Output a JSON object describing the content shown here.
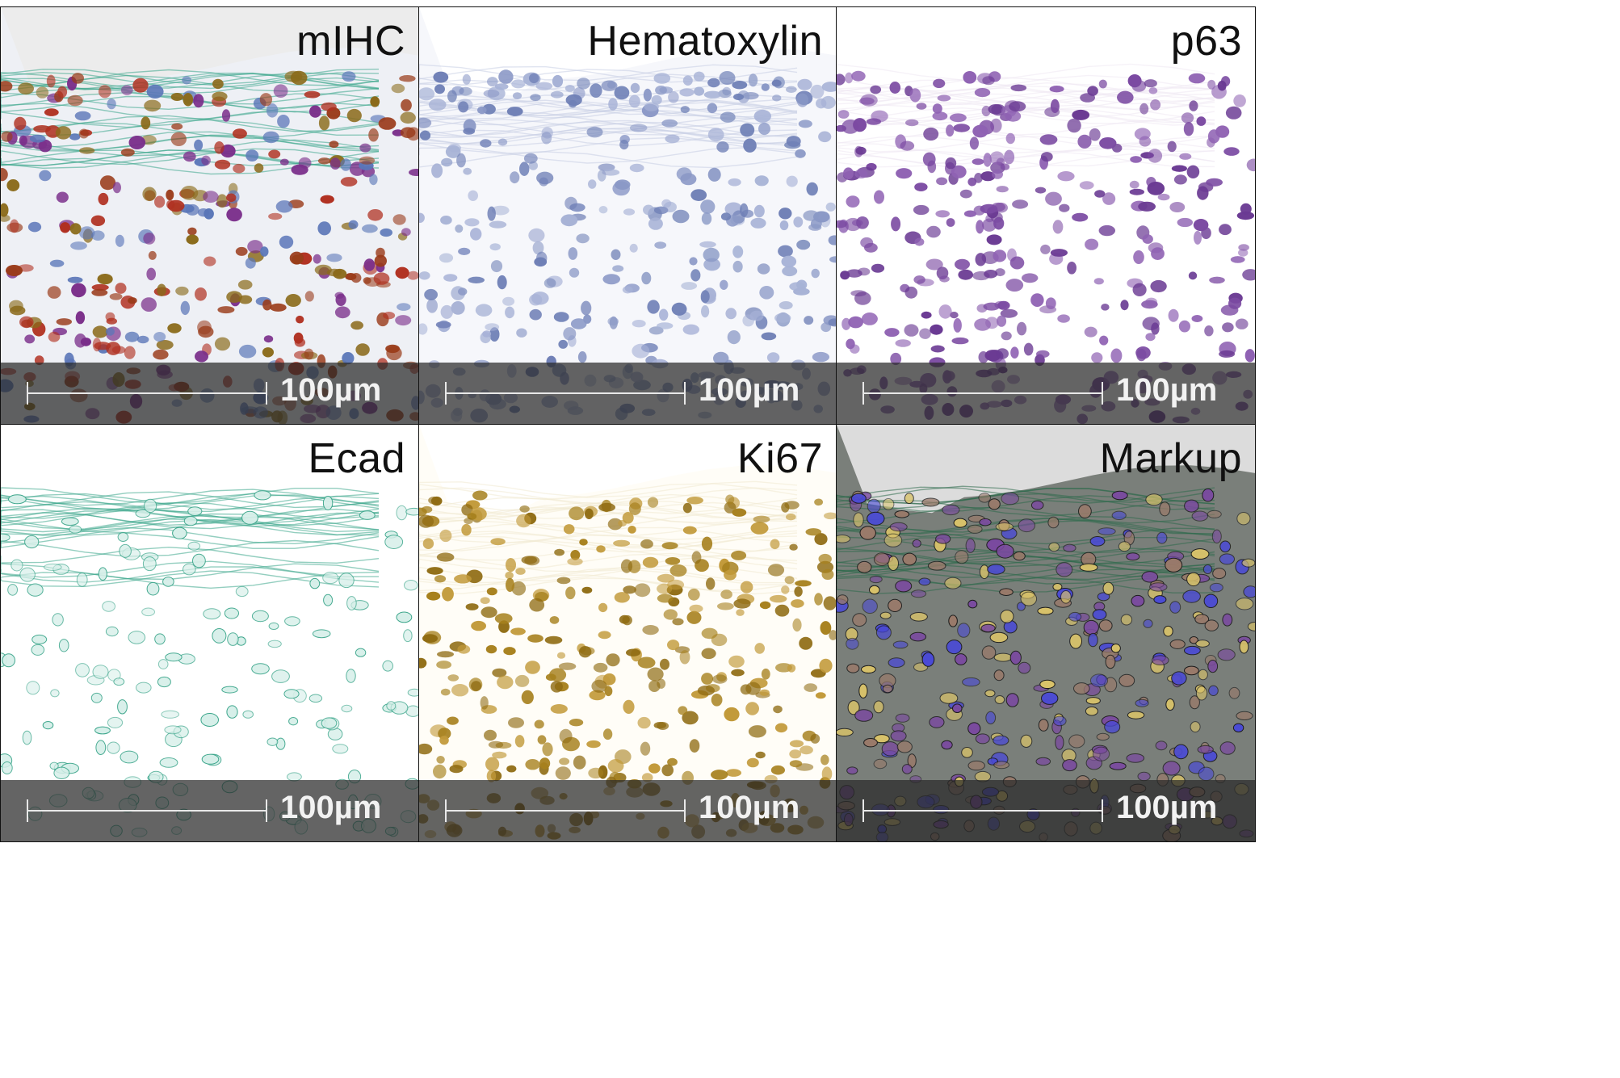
{
  "panels": [
    {
      "key": "mihc",
      "title": "mIHC",
      "scale_label": "100µm",
      "top_color": "#ececec",
      "bg_color": "#eef0f5",
      "nuclei_colors": [
        "#7a2e8a",
        "#9a3b1a",
        "#8a6a1a",
        "#5a76b8",
        "#b03020"
      ],
      "membrane_color": "#3aa58a"
    },
    {
      "key": "hematoxylin",
      "title": "Hematoxylin",
      "scale_label": "100µm",
      "top_color": "#ffffff",
      "bg_color": "#f6f7fb",
      "nuclei_colors": [
        "#8a98c6",
        "#6f80b6",
        "#a7b2d6"
      ],
      "membrane_color": "#c7cde4"
    },
    {
      "key": "p63",
      "title": "p63",
      "scale_label": "100µm",
      "top_color": "#ffffff",
      "bg_color": "#ffffff",
      "nuclei_colors": [
        "#6a3a93",
        "#7b4aa2",
        "#8f62b3"
      ],
      "membrane_color": "#efe8f3"
    },
    {
      "key": "ecad",
      "title": "Ecad",
      "scale_label": "100µm",
      "top_color": "#ffffff",
      "bg_color": "#ffffff",
      "nuclei_colors": [
        "#d6efe9"
      ],
      "membrane_color": "#3aa58a"
    },
    {
      "key": "ki67",
      "title": "Ki67",
      "scale_label": "100µm",
      "top_color": "#ffffff",
      "bg_color": "#fffdf7",
      "nuclei_colors": [
        "#a7811e",
        "#8f6b12",
        "#c29a3a"
      ],
      "membrane_color": "#f1ead2"
    },
    {
      "key": "markup",
      "title": "Markup",
      "scale_label": "100µm",
      "top_color": "#dcdcdc",
      "bg_color": "#7a7f7a",
      "nuclei_colors": [
        "#4a4ad6",
        "#9a7a6a",
        "#d9c36a",
        "#7a4aa0"
      ],
      "membrane_color": "#2c6a4a"
    }
  ]
}
